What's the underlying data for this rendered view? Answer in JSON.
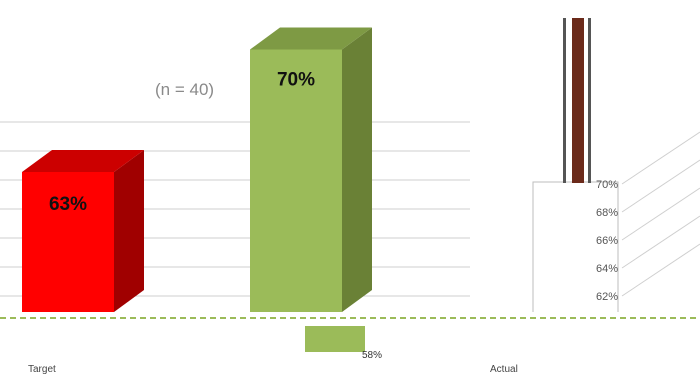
{
  "header": {
    "line1": "",
    "line2": "",
    "n_label": "(n = 40)"
  },
  "colors": {
    "red_front": "#ff0000",
    "red_top": "#cc0000",
    "red_side": "#a00000",
    "green_front": "#9bbb59",
    "green_top": "#7e9a44",
    "green_side": "#6a8136",
    "marker_brown": "#6b2a1a",
    "grid": "#cfcfcf"
  },
  "chart_data": [
    {
      "type": "bar",
      "title": "",
      "categories": [
        "Target",
        "",
        ""
      ],
      "series": [
        {
          "values": [
            63,
            70,
            58
          ]
        }
      ],
      "data_labels": [
        "63%",
        "70%",
        "58%"
      ],
      "grid": true
    },
    {
      "type": "bar",
      "title": "",
      "categories": [
        "Actual"
      ],
      "yticks": [
        "70%",
        "68%",
        "66%",
        "64%",
        "62%"
      ],
      "ylim": [
        62,
        70
      ],
      "grid": true
    }
  ]
}
